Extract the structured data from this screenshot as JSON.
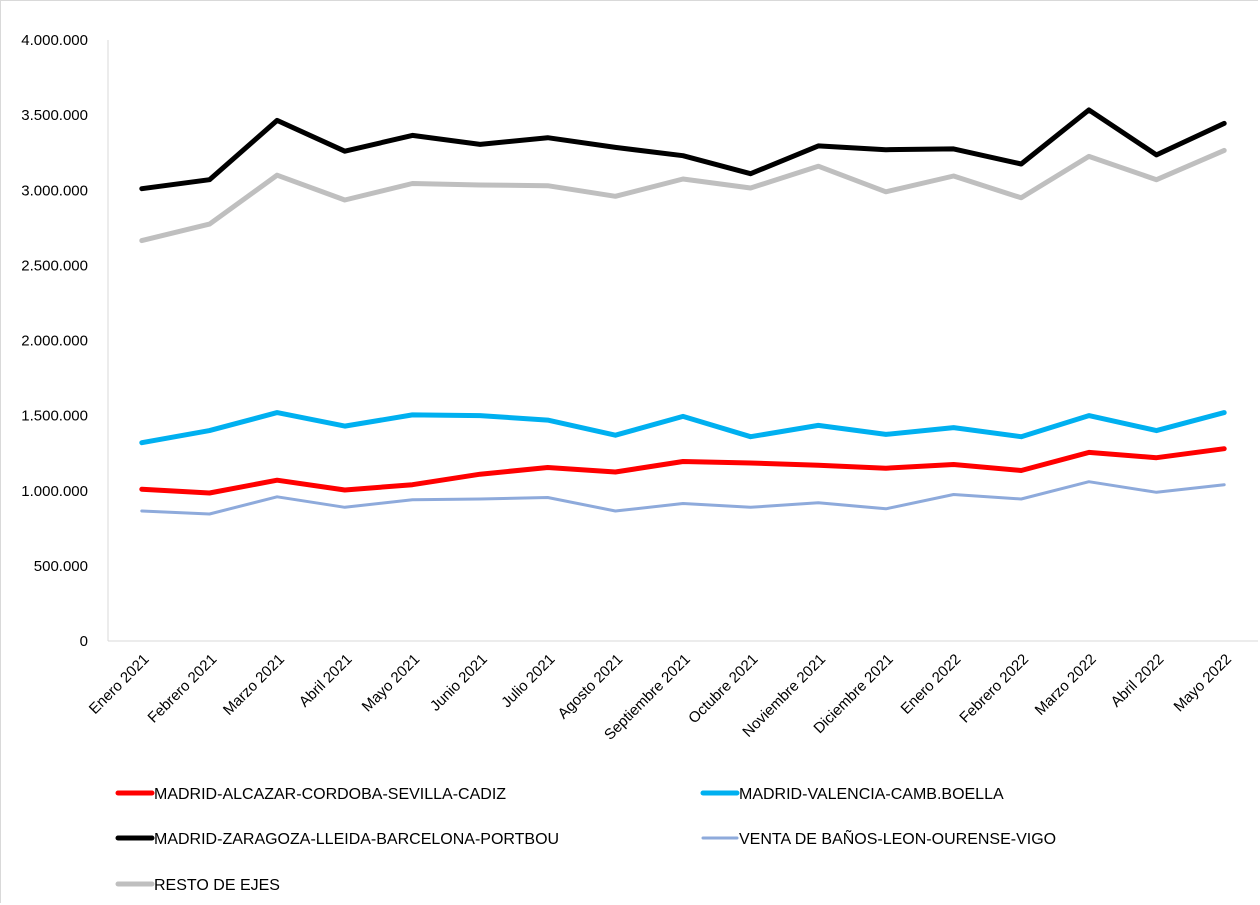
{
  "chart_data": {
    "type": "line",
    "title": "",
    "xlabel": "",
    "ylabel": "",
    "ylim": [
      0,
      4000000
    ],
    "y_ticks": [
      0,
      500000,
      1000000,
      1500000,
      2000000,
      2500000,
      3000000,
      3500000,
      4000000
    ],
    "y_tick_labels": [
      "0",
      "500.000",
      "1.000.000",
      "1.500.000",
      "2.000.000",
      "2.500.000",
      "3.000.000",
      "3.500.000",
      "4.000.000"
    ],
    "grid": false,
    "legend_position": "bottom",
    "categories": [
      "Enero 2021",
      "Febrero 2021",
      "Marzo 2021",
      "Abril 2021",
      "Mayo 2021",
      "Junio 2021",
      "Julio 2021",
      "Agosto 2021",
      "Septiembre 2021",
      "Octubre 2021",
      "Noviembre 2021",
      "Diciembre 2021",
      "Enero 2022",
      "Febrero 2022",
      "Marzo 2022",
      "Abril 2022",
      "Mayo 2022"
    ],
    "series": [
      {
        "name": "MADRID-ALCAZAR-CORDOBA-SEVILLA-CADIZ",
        "color": "#ff0000",
        "width": 5,
        "values": [
          1010000,
          985000,
          1070000,
          1005000,
          1040000,
          1110000,
          1155000,
          1125000,
          1195000,
          1185000,
          1170000,
          1150000,
          1175000,
          1135000,
          1255000,
          1220000,
          1280000
        ]
      },
      {
        "name": "MADRID-VALENCIA-CAMB.BOELLA",
        "color": "#00b0f0",
        "width": 5,
        "values": [
          1320000,
          1400000,
          1520000,
          1430000,
          1505000,
          1500000,
          1470000,
          1370000,
          1495000,
          1360000,
          1435000,
          1375000,
          1420000,
          1360000,
          1500000,
          1400000,
          1520000
        ]
      },
      {
        "name": "MADRID-ZARAGOZA-LLEIDA-BARCELONA-PORTBOU",
        "color": "#000000",
        "width": 5,
        "values": [
          3010000,
          3070000,
          3465000,
          3260000,
          3365000,
          3305000,
          3350000,
          3285000,
          3230000,
          3110000,
          3295000,
          3270000,
          3275000,
          3175000,
          3535000,
          3235000,
          3445000
        ]
      },
      {
        "name": "VENTA DE BAÑOS-LEON-OURENSE-VIGO",
        "color": "#8eaadb",
        "width": 3,
        "values": [
          865000,
          845000,
          960000,
          890000,
          940000,
          945000,
          955000,
          865000,
          915000,
          890000,
          920000,
          880000,
          975000,
          945000,
          1060000,
          990000,
          1040000
        ]
      },
      {
        "name": "RESTO DE EJES",
        "color": "#bfbfbf",
        "width": 5,
        "values": [
          2665000,
          2775000,
          3100000,
          2935000,
          3045000,
          3035000,
          3030000,
          2960000,
          3075000,
          3015000,
          3160000,
          2990000,
          3095000,
          2950000,
          3225000,
          3070000,
          3265000
        ]
      }
    ]
  }
}
